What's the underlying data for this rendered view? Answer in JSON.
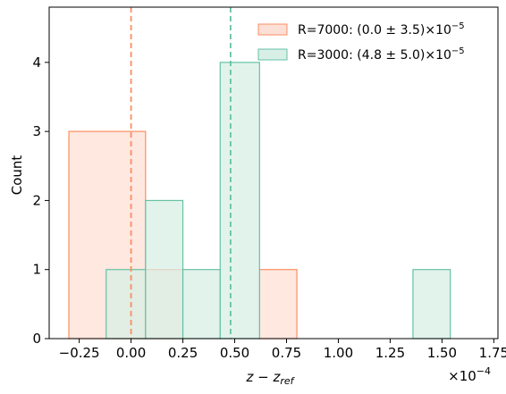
{
  "chart_data": {
    "type": "histogram",
    "xlabel": "z − z",
    "xlabel_sub": "ref",
    "ylabel": "Count",
    "x_offset_label": "×10",
    "x_offset_exp": "−4",
    "xlim": [
      -0.395,
      1.77
    ],
    "ylim": [
      0,
      4.8
    ],
    "x_ticks": [
      -0.25,
      0.0,
      0.25,
      0.5,
      0.75,
      1.0,
      1.25,
      1.5,
      1.75
    ],
    "x_tick_labels": [
      "−0.25",
      "0.00",
      "0.25",
      "0.50",
      "0.75",
      "1.00",
      "1.25",
      "1.50",
      "1.75"
    ],
    "y_ticks": [
      0,
      1,
      2,
      3,
      4
    ],
    "y_tick_labels": [
      "0",
      "1",
      "2",
      "3",
      "4"
    ],
    "grid": false,
    "legend_position": "top-right",
    "series": [
      {
        "name": "R=7000",
        "legend_text": "R=7000: (0.0 ± 3.5)×10",
        "legend_exp": "−5",
        "color": "#fc8d62",
        "fill": "#fde0d5",
        "bin_edges": [
          -0.3,
          0.07,
          0.25,
          0.62,
          0.8
        ],
        "counts": [
          3,
          1,
          0,
          1
        ],
        "mean_line": 0.0
      },
      {
        "name": "R=3000",
        "legend_text": "R=3000: (4.8 ± 5.0)×10",
        "legend_exp": "−5",
        "color": "#66c2a5",
        "fill": "#d8efe6",
        "bin_edges": [
          -0.12,
          0.07,
          0.25,
          0.43,
          0.62,
          0.8,
          0.98,
          1.17,
          1.36,
          1.54
        ],
        "counts": [
          1,
          2,
          1,
          4,
          0,
          0,
          0,
          0,
          1
        ],
        "mean_line": 0.48
      }
    ]
  }
}
